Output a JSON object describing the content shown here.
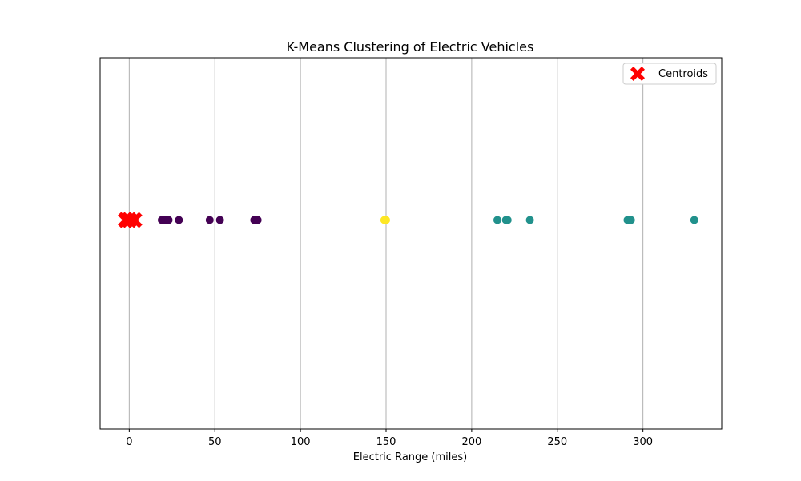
{
  "chart_data": {
    "type": "scatter",
    "title": "K-Means Clustering of Electric Vehicles",
    "xlabel": "Electric Range (miles)",
    "ylabel": "",
    "xlim": [
      -17,
      346
    ],
    "x_ticks": [
      0,
      50,
      100,
      150,
      200,
      250,
      300
    ],
    "grid": "vertical",
    "legend": {
      "position": "top-right",
      "entries": [
        "Centroids"
      ]
    },
    "series": [
      {
        "cluster": 0,
        "color": "#440154",
        "x": [
          19,
          21,
          23,
          29,
          47,
          53,
          73,
          74,
          75
        ],
        "y": [
          0,
          0,
          0,
          0,
          0,
          0,
          0,
          0,
          0
        ]
      },
      {
        "cluster": 1,
        "color": "#21918c",
        "x": [
          215,
          220,
          221,
          234,
          291,
          293,
          330
        ],
        "y": [
          0,
          0,
          0,
          0,
          0,
          0,
          0
        ]
      },
      {
        "cluster": 2,
        "color": "#fde725",
        "x": [
          149,
          150
        ],
        "y": [
          0,
          0
        ]
      }
    ],
    "centroids": {
      "name": "Centroids",
      "color": "#ff0000",
      "marker": "X",
      "x": [
        -2,
        0,
        3
      ],
      "y": [
        0,
        0,
        0
      ]
    }
  }
}
